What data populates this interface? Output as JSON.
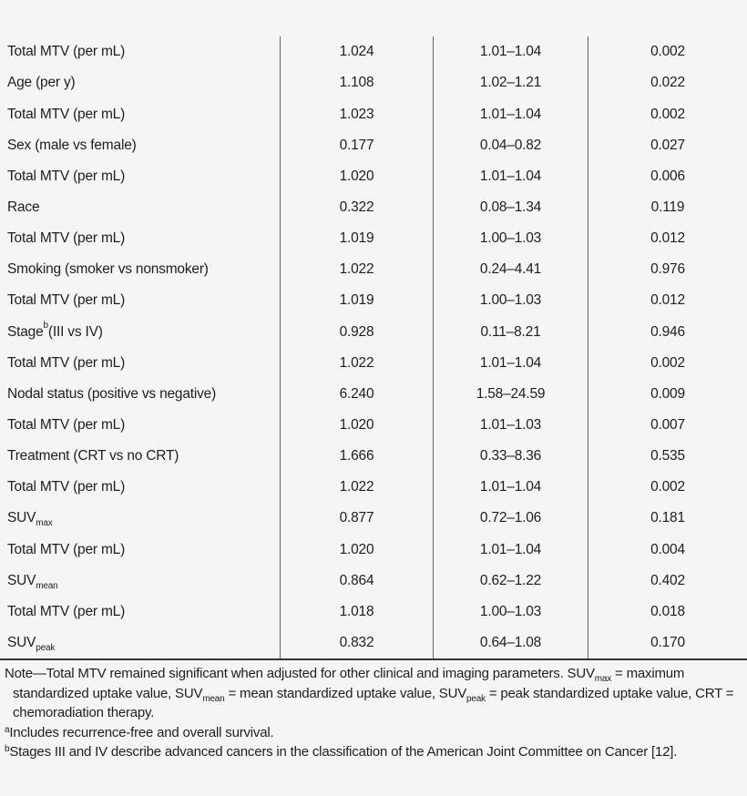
{
  "style": {
    "background": "#f5f5f4",
    "text_color": "#1e1e1e",
    "column_rule_color": "#666666",
    "bottom_rule_color": "#333333"
  },
  "table": {
    "rows": [
      {
        "label_parts": [
          {
            "t": "Total MTV (per mL)"
          }
        ],
        "value": "1.024",
        "ci": "1.01–1.04",
        "p": "0.002"
      },
      {
        "label_parts": [
          {
            "t": "Age (per y)"
          }
        ],
        "value": "1.108",
        "ci": "1.02–1.21",
        "p": "0.022"
      },
      {
        "label_parts": [
          {
            "t": "Total MTV (per mL)"
          }
        ],
        "value": "1.023",
        "ci": "1.01–1.04",
        "p": "0.002"
      },
      {
        "label_parts": [
          {
            "t": "Sex (male vs female)"
          }
        ],
        "value": "0.177",
        "ci": "0.04–0.82",
        "p": "0.027"
      },
      {
        "label_parts": [
          {
            "t": "Total MTV (per mL)"
          }
        ],
        "value": "1.020",
        "ci": "1.01–1.04",
        "p": "0.006"
      },
      {
        "label_parts": [
          {
            "t": "Race"
          }
        ],
        "value": "0.322",
        "ci": "0.08–1.34",
        "p": "0.119"
      },
      {
        "label_parts": [
          {
            "t": "Total MTV (per mL)"
          }
        ],
        "value": "1.019",
        "ci": "1.00–1.03",
        "p": "0.012"
      },
      {
        "label_parts": [
          {
            "t": "Smoking (smoker vs nonsmoker)"
          }
        ],
        "value": "1.022",
        "ci": "0.24–4.41",
        "p": "0.976"
      },
      {
        "label_parts": [
          {
            "t": "Total MTV (per mL)"
          }
        ],
        "value": "1.019",
        "ci": "1.00–1.03",
        "p": "0.012"
      },
      {
        "label_parts": [
          {
            "t": "Stage"
          },
          {
            "sup": "b"
          },
          {
            "t": " (III vs IV)"
          }
        ],
        "value": "0.928",
        "ci": "0.11–8.21",
        "p": "0.946"
      },
      {
        "label_parts": [
          {
            "t": "Total MTV (per mL)"
          }
        ],
        "value": "1.022",
        "ci": "1.01–1.04",
        "p": "0.002"
      },
      {
        "label_parts": [
          {
            "t": "Nodal status (positive vs negative)"
          }
        ],
        "value": "6.240",
        "ci": "1.58–24.59",
        "p": "0.009"
      },
      {
        "label_parts": [
          {
            "t": "Total MTV (per mL)"
          }
        ],
        "value": "1.020",
        "ci": "1.01–1.03",
        "p": "0.007"
      },
      {
        "label_parts": [
          {
            "t": "Treatment (CRT vs no CRT)"
          }
        ],
        "value": "1.666",
        "ci": "0.33–8.36",
        "p": "0.535"
      },
      {
        "label_parts": [
          {
            "t": "Total MTV (per mL)"
          }
        ],
        "value": "1.022",
        "ci": "1.01–1.04",
        "p": "0.002"
      },
      {
        "label_parts": [
          {
            "t": "SUV"
          },
          {
            "sub": "max"
          }
        ],
        "value": "0.877",
        "ci": "0.72–1.06",
        "p": "0.181"
      },
      {
        "label_parts": [
          {
            "t": "Total MTV (per mL)"
          }
        ],
        "value": "1.020",
        "ci": "1.01–1.04",
        "p": "0.004"
      },
      {
        "label_parts": [
          {
            "t": "SUV"
          },
          {
            "sub": "mean"
          }
        ],
        "value": "0.864",
        "ci": "0.62–1.22",
        "p": "0.402"
      },
      {
        "label_parts": [
          {
            "t": "Total MTV (per mL)"
          }
        ],
        "value": "1.018",
        "ci": "1.00–1.03",
        "p": "0.018"
      },
      {
        "label_parts": [
          {
            "t": "SUV"
          },
          {
            "sub": "peak"
          }
        ],
        "value": "0.832",
        "ci": "0.64–1.08",
        "p": "0.170"
      }
    ]
  },
  "notes": {
    "note_parts": [
      {
        "t": "Note—Total MTV remained significant when adjusted for other clinical and imaging parameters. SUV"
      },
      {
        "sub": "max"
      },
      {
        "t": " = maximum standardized uptake value, SUV"
      },
      {
        "sub": "mean"
      },
      {
        "t": " = mean standardized uptake value, SUV"
      },
      {
        "sub": "peak"
      },
      {
        "t": " = peak standardized uptake value, CRT = chemoradiation therapy."
      }
    ],
    "footnote_a_parts": [
      {
        "sup": "a"
      },
      {
        "t": "Includes recurrence-free and overall survival."
      }
    ],
    "footnote_b_parts": [
      {
        "sup": "b"
      },
      {
        "t": "Stages III and IV describe advanced cancers in the classification of the American Joint Committee on Cancer [12]."
      }
    ]
  }
}
